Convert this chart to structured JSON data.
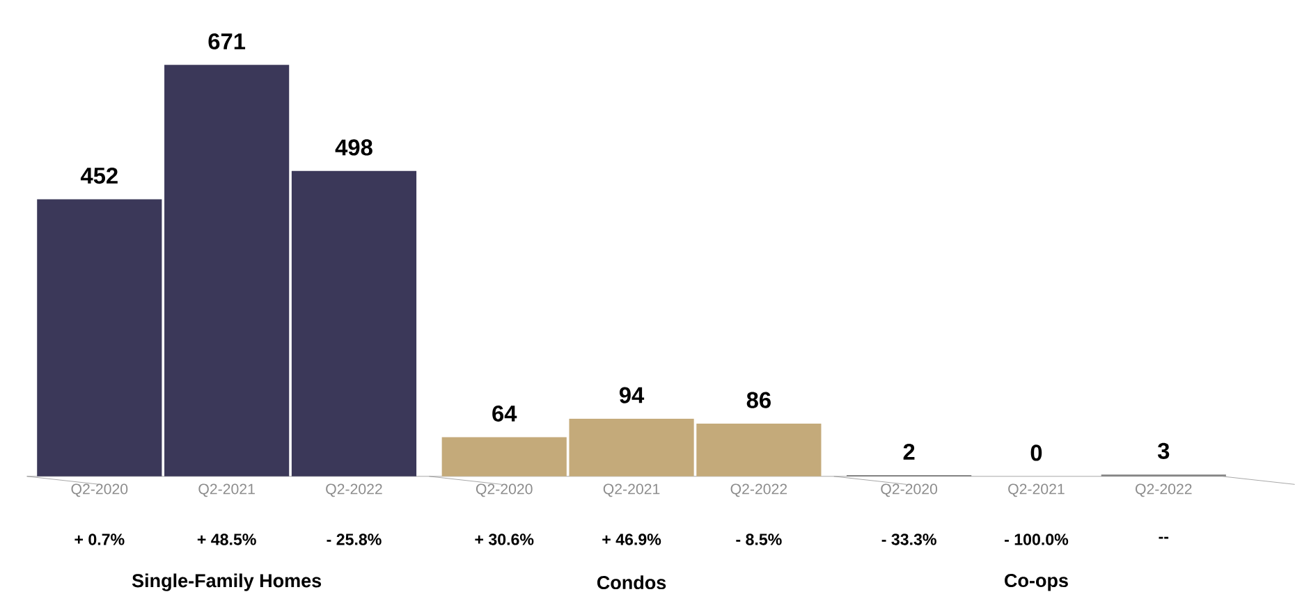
{
  "chart_data": {
    "type": "bar",
    "categories": [
      "Q2-2020",
      "Q2-2021",
      "Q2-2022",
      "Q2-2020",
      "Q2-2021",
      "Q2-2022",
      "Q2-2020",
      "Q2-2021",
      "Q2-2022"
    ],
    "values": [
      452,
      671,
      498,
      64,
      94,
      86,
      2,
      0,
      3
    ],
    "colors": [
      "#3b3859",
      "#3b3859",
      "#3b3859",
      "#c4aa7a",
      "#c4aa7a",
      "#c4aa7a",
      "#808080",
      "#808080",
      "#808080"
    ],
    "data_labels": true,
    "annotations": [
      "+ 0.7%",
      "+ 48.5%",
      "- 25.8%",
      "+ 30.6%",
      "+ 46.9%",
      "- 8.5%",
      "- 33.3%",
      "- 100.0%",
      "--",
      "Single-Family Homes",
      "Condos",
      "Co-ops"
    ]
  }
}
